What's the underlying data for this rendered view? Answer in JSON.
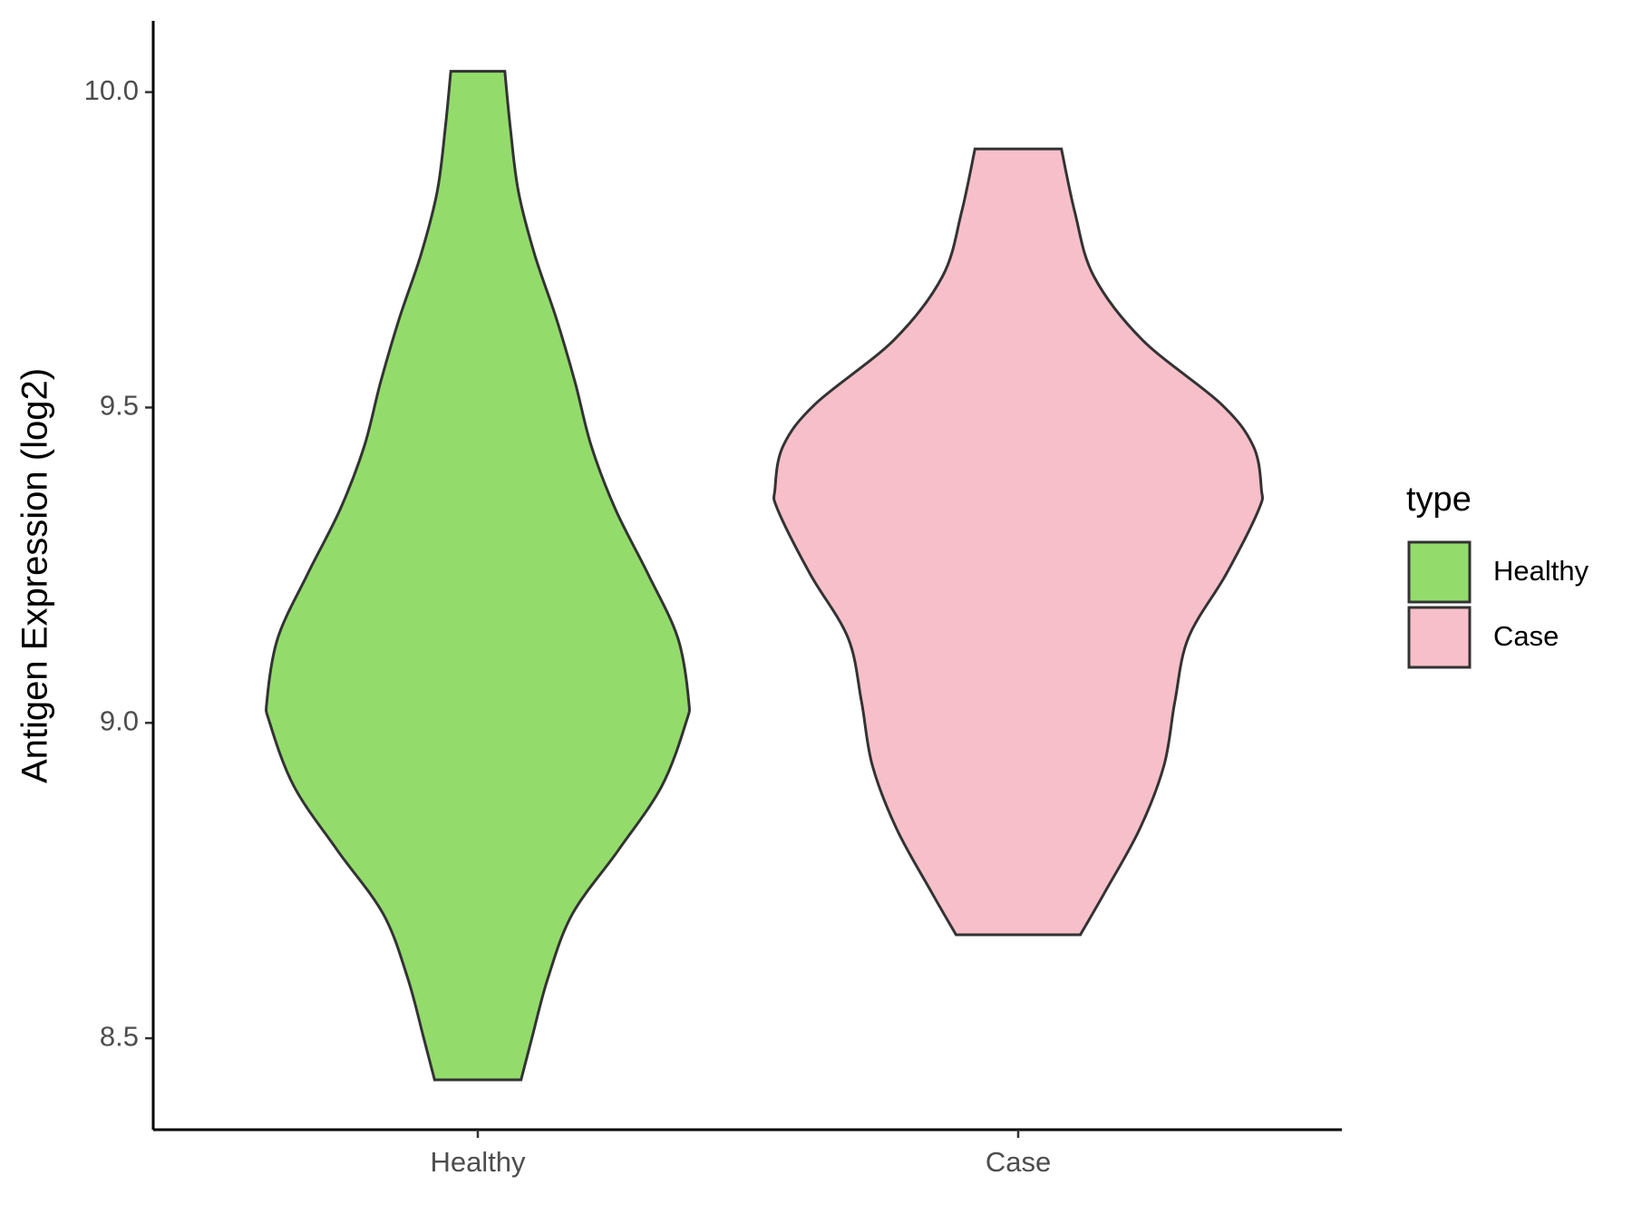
{
  "chart_data": {
    "type": "violin",
    "ylabel": "Antigen Expression (log2)",
    "categories": [
      "Healthy",
      "Case"
    ],
    "series": [
      {
        "name": "Healthy",
        "color": "#93dc6b",
        "y": [
          8.434,
          8.5,
          8.596,
          8.697,
          8.798,
          8.899,
          9.0,
          9.037,
          9.135,
          9.236,
          9.338,
          9.439,
          9.54,
          9.642,
          9.743,
          9.843,
          9.945,
          10.033
        ],
        "widths": [
          0.16,
          0.2,
          0.26,
          0.35,
          0.52,
          0.68,
          0.77,
          0.78,
          0.74,
          0.63,
          0.51,
          0.42,
          0.36,
          0.29,
          0.21,
          0.15,
          0.12,
          0.1
        ]
      },
      {
        "name": "Case",
        "color": "#f7bfca",
        "y": [
          8.664,
          8.731,
          8.832,
          8.933,
          9.034,
          9.135,
          9.236,
          9.338,
          9.371,
          9.439,
          9.506,
          9.607,
          9.708,
          9.809,
          9.91
        ],
        "widths": [
          0.23,
          0.32,
          0.45,
          0.54,
          0.58,
          0.63,
          0.77,
          0.89,
          0.9,
          0.87,
          0.75,
          0.46,
          0.28,
          0.21,
          0.16
        ]
      }
    ],
    "ylim": [
      8.355,
      10.113
    ],
    "yticks": [
      8.5,
      {
        "value": 9,
        "label": "9.0"
      },
      9.5,
      {
        "value": 10,
        "label": "10.0"
      }
    ],
    "legend_title": "type",
    "legend": "right"
  }
}
